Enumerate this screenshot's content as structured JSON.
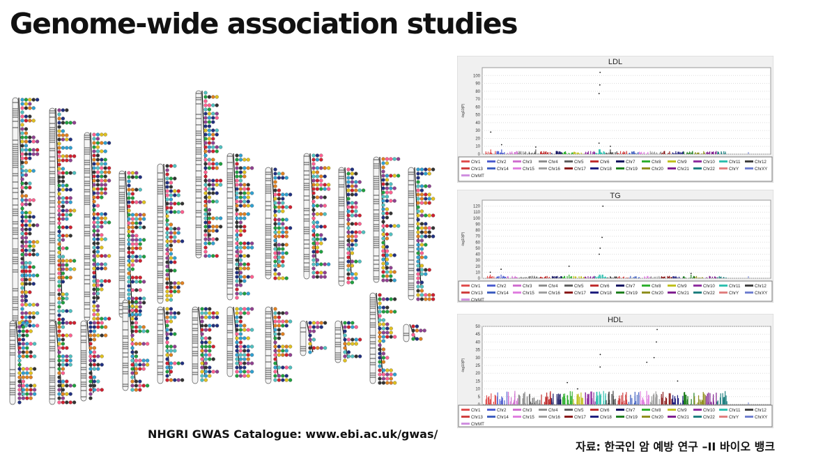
{
  "slide": {
    "title": "Genome-wide association studies",
    "caption_left": "NHGRI GWAS Catalogue: www.ebi.ac.uk/gwas/",
    "caption_right": "자료: 한국인 암 예방 연구 –II 바이오 뱅크"
  },
  "legend": {
    "labels": [
      "Chr1",
      "Chr2",
      "Chr3",
      "Chr4",
      "Chr5",
      "Chr6",
      "Chr7",
      "Chr8",
      "Chr9",
      "Chr10",
      "Chr11",
      "Chr12",
      "Chr13",
      "Chr14",
      "Chr15",
      "Chr16",
      "Chr17",
      "Chr18",
      "Chr19",
      "Chr20",
      "Chr21",
      "Chr22",
      "ChrY",
      "ChrXY",
      "ChrMT"
    ],
    "colors": [
      "#e05050",
      "#5060d0",
      "#d070d0",
      "#909090",
      "#606060",
      "#c03030",
      "#101060",
      "#30b030",
      "#c0c020",
      "#9030a0",
      "#30c0b0",
      "#404040",
      "#d04040",
      "#4060c0",
      "#e080e0",
      "#a0a0a0",
      "#8a1a1a",
      "#202080",
      "#208020",
      "#909020",
      "#802090",
      "#208080",
      "#e08080",
      "#7080d0",
      "#d090e0"
    ]
  },
  "chart_data": [
    {
      "type": "scatter",
      "title": "LDL",
      "ylabel": "-log10(P)",
      "ylim": [
        0,
        110
      ],
      "yticks": [
        "0",
        "10",
        "20",
        "30",
        "40",
        "50",
        "60",
        "70",
        "80",
        "90",
        "100"
      ],
      "peaks": [
        {
          "chr": "Chr1",
          "value": 28
        },
        {
          "chr": "Chr2",
          "value": 12
        },
        {
          "chr": "Chr5",
          "value": 9
        },
        {
          "chr": "Chr11",
          "value": 104
        },
        {
          "chr": "Chr11",
          "value": 88
        },
        {
          "chr": "Chr11",
          "value": 77
        },
        {
          "chr": "Chr11",
          "value": 14
        },
        {
          "chr": "Chr12",
          "value": 10
        }
      ]
    },
    {
      "type": "scatter",
      "title": "TG",
      "ylabel": "-log10(P)",
      "ylim": [
        0,
        130
      ],
      "yticks": [
        "0",
        "10",
        "20",
        "30",
        "40",
        "50",
        "60",
        "70",
        "80",
        "90",
        "100",
        "110",
        "120"
      ],
      "peaks": [
        {
          "chr": "Chr1",
          "value": 10
        },
        {
          "chr": "Chr2",
          "value": 15
        },
        {
          "chr": "Chr8",
          "value": 20
        },
        {
          "chr": "Chr11",
          "value": 120
        },
        {
          "chr": "Chr11",
          "value": 68
        },
        {
          "chr": "Chr11",
          "value": 50
        },
        {
          "chr": "Chr11",
          "value": 40
        },
        {
          "chr": "Chr19",
          "value": 8
        }
      ]
    },
    {
      "type": "scatter",
      "title": "HDL",
      "ylabel": "-log10(P)",
      "ylim": [
        0,
        50
      ],
      "yticks": [
        "0",
        "5",
        "10",
        "15",
        "20",
        "25",
        "30",
        "35",
        "40",
        "45",
        "50"
      ],
      "peaks": [
        {
          "chr": "Chr8",
          "value": 14
        },
        {
          "chr": "Chr9",
          "value": 10
        },
        {
          "chr": "Chr11",
          "value": 32
        },
        {
          "chr": "Chr11",
          "value": 24
        },
        {
          "chr": "Chr15",
          "value": 27
        },
        {
          "chr": "Chr16",
          "value": 48
        },
        {
          "chr": "Chr16",
          "value": 40
        },
        {
          "chr": "Chr16",
          "value": 30
        },
        {
          "chr": "Chr18",
          "value": 15
        }
      ]
    }
  ]
}
